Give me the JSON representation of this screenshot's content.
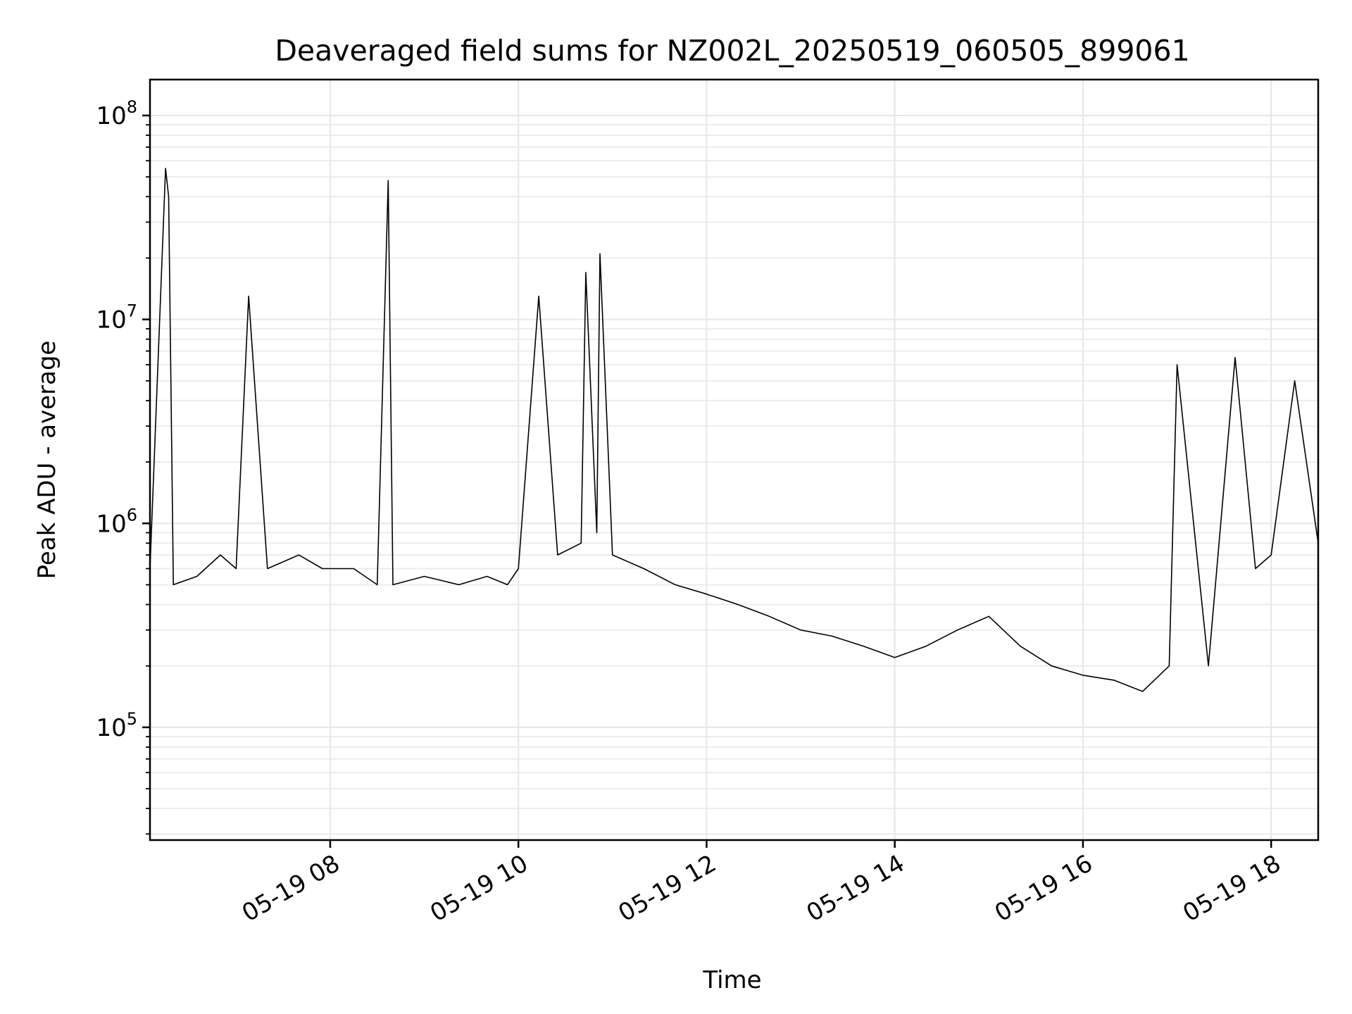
{
  "chart_data": {
    "type": "line",
    "title": "Deaveraged field sums for NZ002L_20250519_060505_899061",
    "xlabel": "Time",
    "ylabel": "Peak ADU - average",
    "y_scale": "log",
    "ylim": [
      28000,
      150000000
    ],
    "xlim": [
      "2025-05-19T06:05:05",
      "2025-05-19T18:30:00"
    ],
    "grid": true,
    "line_color": "#000000",
    "x_ticks": [
      {
        "value": "2025-05-19T08:00:00",
        "label": "05-19 08"
      },
      {
        "value": "2025-05-19T10:00:00",
        "label": "05-19 10"
      },
      {
        "value": "2025-05-19T12:00:00",
        "label": "05-19 12"
      },
      {
        "value": "2025-05-19T14:00:00",
        "label": "05-19 14"
      },
      {
        "value": "2025-05-19T16:00:00",
        "label": "05-19 16"
      },
      {
        "value": "2025-05-19T18:00:00",
        "label": "05-19 18"
      }
    ],
    "y_ticks": [
      {
        "value": 100000,
        "base": "10",
        "exp": "5"
      },
      {
        "value": 1000000,
        "base": "10",
        "exp": "6"
      },
      {
        "value": 10000000,
        "base": "10",
        "exp": "7"
      },
      {
        "value": 100000000,
        "base": "10",
        "exp": "8"
      }
    ],
    "series": [
      {
        "x": [
          "2025-05-19T06:05:05",
          "2025-05-19T06:15:00",
          "2025-05-19T06:17:00",
          "2025-05-19T06:20:00",
          "2025-05-19T06:35:00",
          "2025-05-19T06:50:00",
          "2025-05-19T07:00:00",
          "2025-05-19T07:08:00",
          "2025-05-19T07:20:00",
          "2025-05-19T07:40:00",
          "2025-05-19T07:55:00",
          "2025-05-19T08:15:00",
          "2025-05-19T08:30:00",
          "2025-05-19T08:37:00",
          "2025-05-19T08:40:00",
          "2025-05-19T09:00:00",
          "2025-05-19T09:22:00",
          "2025-05-19T09:40:00",
          "2025-05-19T09:53:00",
          "2025-05-19T10:00:00",
          "2025-05-19T10:13:00",
          "2025-05-19T10:25:00",
          "2025-05-19T10:40:00",
          "2025-05-19T10:43:00",
          "2025-05-19T10:50:00",
          "2025-05-19T10:52:00",
          "2025-05-19T11:00:00",
          "2025-05-19T11:20:00",
          "2025-05-19T11:40:00",
          "2025-05-19T12:00:00",
          "2025-05-19T12:20:00",
          "2025-05-19T12:40:00",
          "2025-05-19T13:00:00",
          "2025-05-19T13:20:00",
          "2025-05-19T13:40:00",
          "2025-05-19T14:00:00",
          "2025-05-19T14:20:00",
          "2025-05-19T14:40:00",
          "2025-05-19T15:00:00",
          "2025-05-19T15:20:00",
          "2025-05-19T15:40:00",
          "2025-05-19T16:00:00",
          "2025-05-19T16:20:00",
          "2025-05-19T16:38:00",
          "2025-05-19T16:55:00",
          "2025-05-19T17:00:00",
          "2025-05-19T17:20:00",
          "2025-05-19T17:37:00",
          "2025-05-19T17:50:00",
          "2025-05-19T18:00:00",
          "2025-05-19T18:15:00",
          "2025-05-19T18:30:00"
        ],
        "y": [
          600000,
          55000000,
          40000000,
          500000,
          550000,
          700000,
          600000,
          13000000,
          600000,
          700000,
          600000,
          600000,
          500000,
          48000000,
          500000,
          550000,
          500000,
          550000,
          500000,
          600000,
          13000000,
          700000,
          800000,
          17000000,
          900000,
          21000000,
          700000,
          600000,
          500000,
          450000,
          400000,
          350000,
          300000,
          280000,
          250000,
          220000,
          250000,
          300000,
          350000,
          250000,
          200000,
          180000,
          170000,
          150000,
          200000,
          6000000,
          200000,
          6500000,
          600000,
          700000,
          5000000,
          800000
        ]
      }
    ]
  }
}
